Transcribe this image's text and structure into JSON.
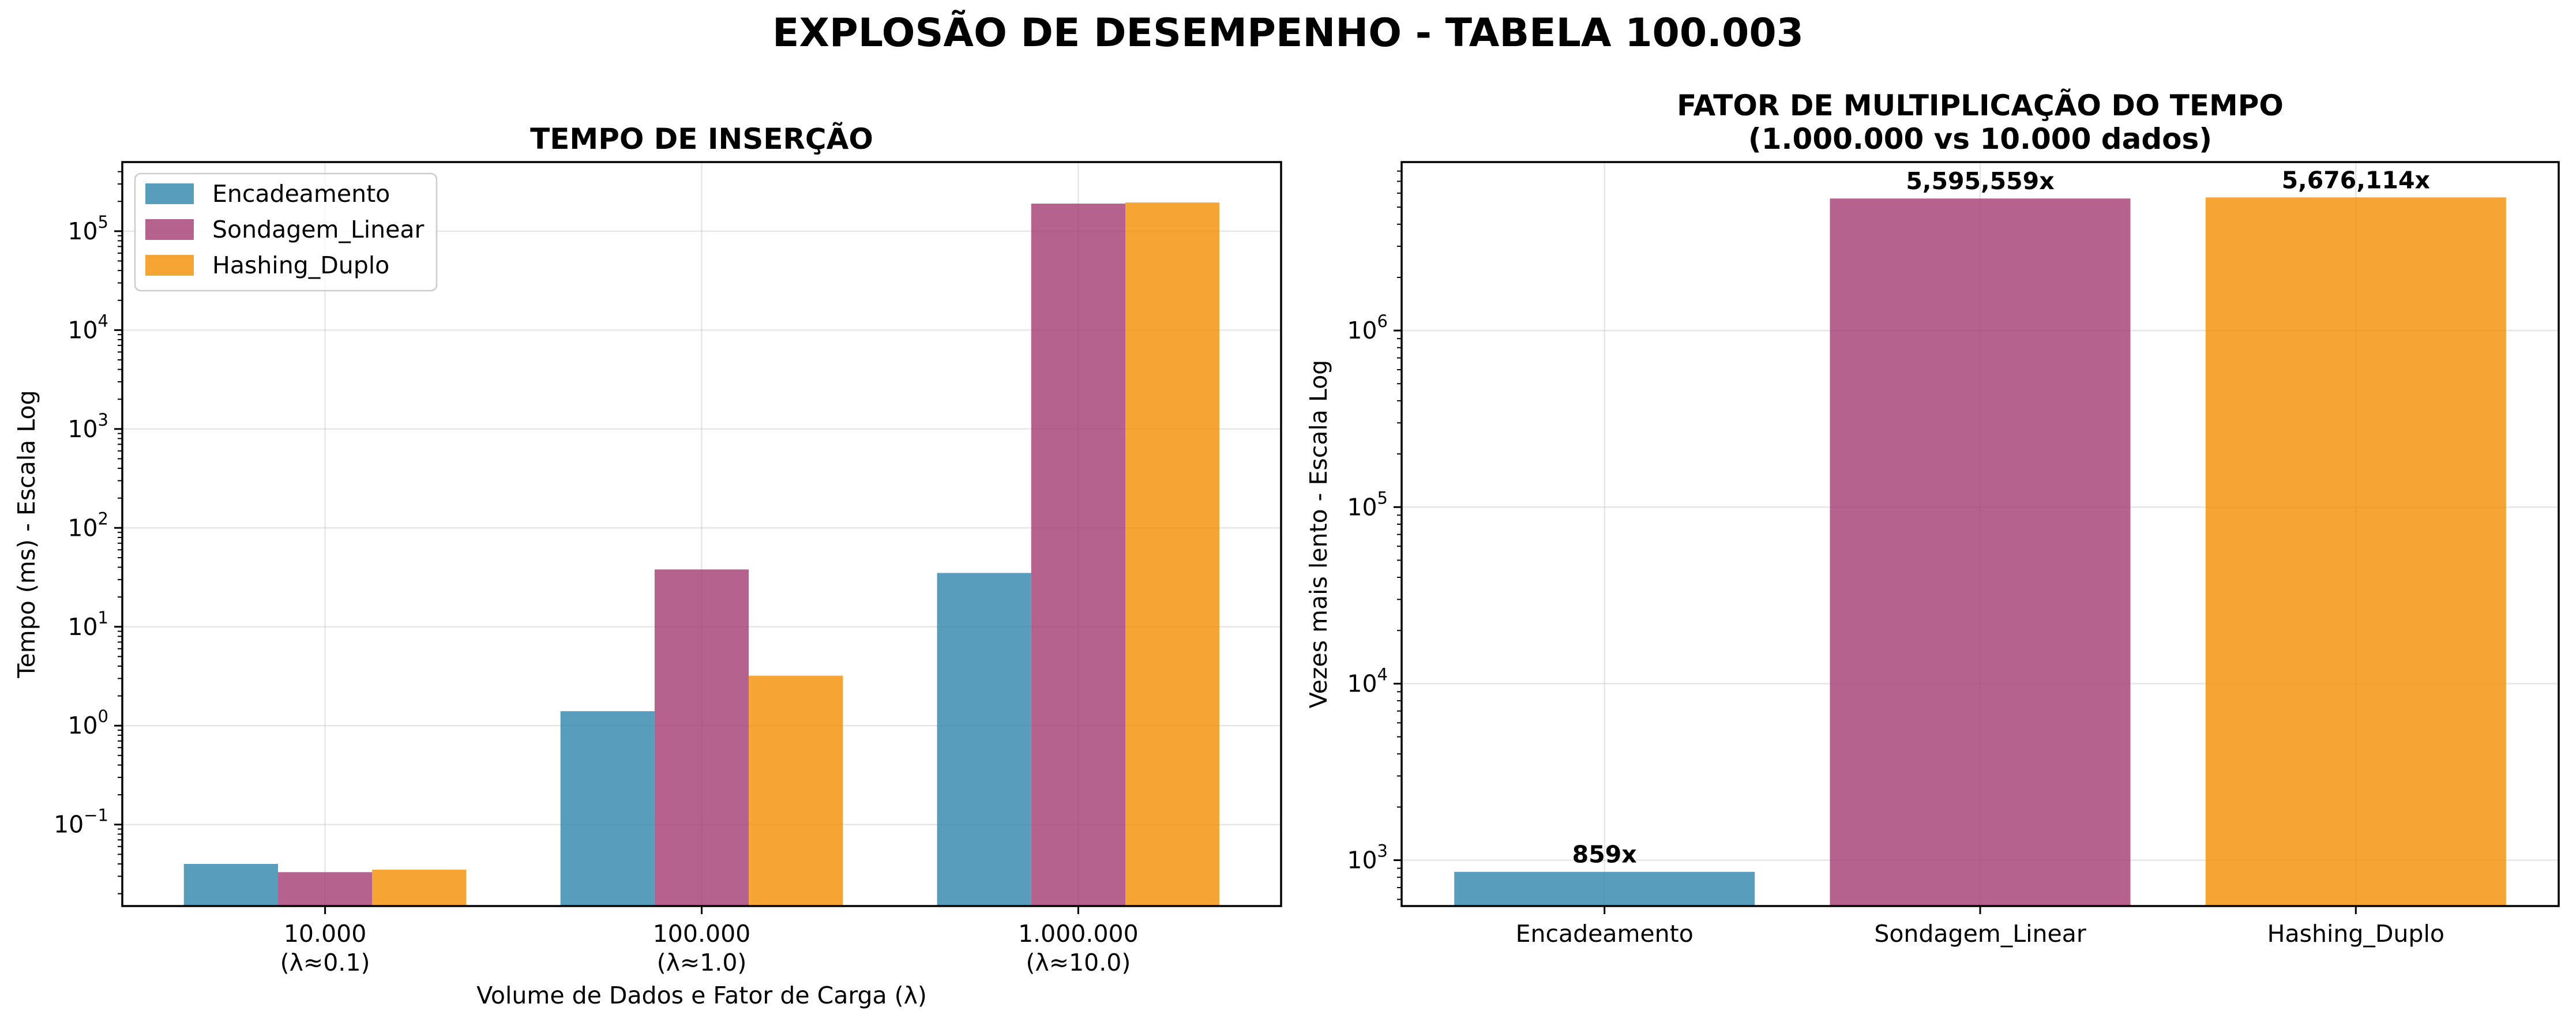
{
  "figure": {
    "suptitle": "EXPLOSÃO DE DESEMPENHO - TABELA 100.003"
  },
  "colors": {
    "Encadeamento": "#2E86AB",
    "Sondagem_Linear": "#A23B72",
    "Hashing_Duplo": "#F18F01"
  },
  "chart_data": [
    {
      "type": "bar",
      "title": "TEMPO DE INSERÇÃO",
      "xlabel": "Volume de Dados e Fator de Carga (λ)",
      "ylabel": "Tempo (ms) - Escala Log",
      "yscale": "log",
      "ylim": [
        0.015,
        500000
      ],
      "grid": true,
      "legend_position": "upper-left",
      "categories": [
        [
          "10.000",
          "(λ≈0.1)"
        ],
        [
          "100.000",
          "(λ≈1.0)"
        ],
        [
          "1.000.000",
          "(λ≈10.0)"
        ]
      ],
      "y_ticks": [
        {
          "base": "10",
          "exp": "−1",
          "value": 0.1
        },
        {
          "base": "10",
          "exp": "0",
          "value": 1
        },
        {
          "base": "10",
          "exp": "1",
          "value": 10
        },
        {
          "base": "10",
          "exp": "2",
          "value": 100
        },
        {
          "base": "10",
          "exp": "3",
          "value": 1000
        },
        {
          "base": "10",
          "exp": "4",
          "value": 10000
        },
        {
          "base": "10",
          "exp": "5",
          "value": 100000
        }
      ],
      "series": [
        {
          "name": "Encadeamento",
          "values": [
            0.04,
            1.4,
            35
          ]
        },
        {
          "name": "Sondagem_Linear",
          "values": [
            0.033,
            38,
            190000
          ]
        },
        {
          "name": "Hashing_Duplo",
          "values": [
            0.035,
            3.2,
            195000
          ]
        }
      ]
    },
    {
      "type": "bar",
      "title": [
        "FATOR DE MULTIPLICAÇÃO DO TEMPO",
        "(1.000.000 vs 10.000 dados)"
      ],
      "xlabel": "",
      "ylabel": "Vezes mais lento - Escala Log",
      "yscale": "log",
      "ylim": [
        550,
        9000000
      ],
      "grid": true,
      "categories": [
        "Encadeamento",
        "Sondagem_Linear",
        "Hashing_Duplo"
      ],
      "values": [
        859,
        5595559,
        5676114
      ],
      "data_labels": [
        "859x",
        "5,595,559x",
        "5,676,114x"
      ],
      "y_ticks": [
        {
          "base": "10",
          "exp": "3",
          "value": 1000
        },
        {
          "base": "10",
          "exp": "4",
          "value": 10000
        },
        {
          "base": "10",
          "exp": "5",
          "value": 100000
        },
        {
          "base": "10",
          "exp": "6",
          "value": 1000000
        }
      ]
    }
  ]
}
